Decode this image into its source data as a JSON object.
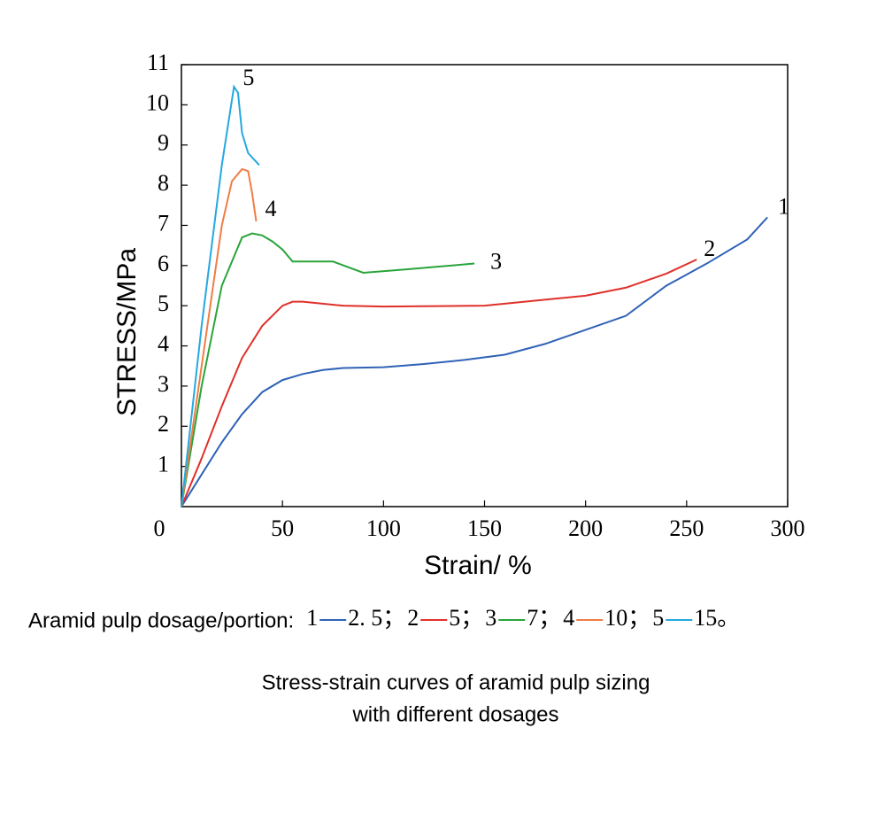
{
  "chart_data": {
    "type": "line",
    "caption": [
      "Stress-strain curves of aramid pulp sizing",
      "with different dosages"
    ],
    "xlabel": "Strain/ %",
    "ylabel": "STRESS/MPa",
    "legend_title": "Aramid pulp dosage/portion:",
    "xlim": [
      0,
      300
    ],
    "xticks": [
      0,
      50,
      100,
      150,
      200,
      250,
      300
    ],
    "ylim": [
      0,
      11
    ],
    "yticks": [
      1,
      2,
      3,
      4,
      5,
      6,
      7,
      8,
      9,
      10,
      11
    ],
    "series": [
      {
        "name": "1",
        "dosage": "2. 5；",
        "color": "#2f62b6",
        "x": [
          0,
          10,
          20,
          30,
          40,
          50,
          60,
          70,
          80,
          100,
          120,
          140,
          160,
          180,
          200,
          220,
          240,
          260,
          280,
          290
        ],
        "values": [
          0,
          0.8,
          1.6,
          2.3,
          2.85,
          3.15,
          3.3,
          3.4,
          3.45,
          3.47,
          3.55,
          3.65,
          3.78,
          4.05,
          4.4,
          4.75,
          5.5,
          6.05,
          6.65,
          7.2
        ]
      },
      {
        "name": "2",
        "dosage": "5；",
        "color": "#e0302a",
        "x": [
          0,
          10,
          20,
          30,
          40,
          50,
          55,
          60,
          80,
          100,
          150,
          200,
          220,
          240,
          255
        ],
        "values": [
          0,
          1.2,
          2.5,
          3.7,
          4.5,
          5.0,
          5.1,
          5.1,
          5.0,
          4.98,
          5.0,
          5.25,
          5.45,
          5.8,
          6.15
        ]
      },
      {
        "name": "3",
        "dosage": "7；",
        "color": "#2aa43a",
        "x": [
          0,
          10,
          20,
          30,
          35,
          40,
          45,
          50,
          55,
          60,
          75,
          90,
          110,
          145
        ],
        "values": [
          0,
          3,
          5.5,
          6.7,
          6.8,
          6.75,
          6.6,
          6.4,
          6.1,
          6.1,
          6.1,
          5.82,
          5.9,
          6.05
        ]
      },
      {
        "name": "4",
        "dosage": "10；",
        "color": "#f07d44",
        "x": [
          0,
          10,
          20,
          25,
          30,
          33,
          35,
          37
        ],
        "values": [
          0,
          3.5,
          7,
          8.1,
          8.4,
          8.35,
          7.8,
          7.1
        ]
      },
      {
        "name": "5",
        "dosage": "15。",
        "color": "#24a8e0",
        "x": [
          0,
          10,
          20,
          26,
          28,
          30,
          33,
          38.5
        ],
        "values": [
          0,
          4.5,
          8.5,
          10.45,
          10.3,
          9.3,
          8.8,
          8.5
        ]
      }
    ]
  }
}
